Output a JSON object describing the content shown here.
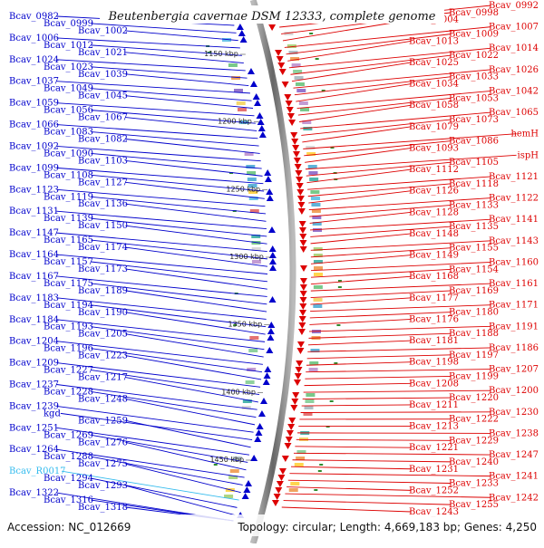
{
  "title": "Beutenbergia cavernae DSM 12333, complete genome",
  "footer": {
    "accession": "Accession: NC_012669",
    "topology": "Topology: circular; Length: 4,669,183 bp; Genes: 4,250"
  },
  "kbp_marks": [
    "1150 kbp",
    "1200 kbp",
    "1250 kbp",
    "1300 kbp",
    "1350 kbp",
    "1400 kbp",
    "1450 kbp"
  ],
  "colors": {
    "left_strand": "#0000cc",
    "right_strand": "#dd0000",
    "rna": "#33bbee"
  },
  "left_labels": [
    {
      "text": "Bcav_0982",
      "color": "#0000cc"
    },
    {
      "text": "Bcav_0999",
      "color": "#0000cc"
    },
    {
      "text": "Bcav_1002",
      "color": "#0000cc"
    },
    {
      "text": "Bcav_1006",
      "color": "#0000cc"
    },
    {
      "text": "Bcav_1012",
      "color": "#0000cc"
    },
    {
      "text": "Bcav_1021",
      "color": "#0000cc"
    },
    {
      "text": "Bcav_1024",
      "color": "#0000cc"
    },
    {
      "text": "Bcav_1023",
      "color": "#0000cc"
    },
    {
      "text": "Bcav_1039",
      "color": "#0000cc"
    },
    {
      "text": "Bcav_1037",
      "color": "#0000cc"
    },
    {
      "text": "Bcav_1049",
      "color": "#0000cc"
    },
    {
      "text": "Bcav_1045",
      "color": "#0000cc"
    },
    {
      "text": "Bcav_1059",
      "color": "#0000cc"
    },
    {
      "text": "Bcav_1056",
      "color": "#0000cc"
    },
    {
      "text": "Bcav_1067",
      "color": "#0000cc"
    },
    {
      "text": "Bcav_1066",
      "color": "#0000cc"
    },
    {
      "text": "Bcav_1083",
      "color": "#0000cc"
    },
    {
      "text": "Bcav_1082",
      "color": "#0000cc"
    },
    {
      "text": "Bcav_1092",
      "color": "#0000cc"
    },
    {
      "text": "Bcav_1090",
      "color": "#0000cc"
    },
    {
      "text": "Bcav_1103",
      "color": "#0000cc"
    },
    {
      "text": "Bcav_1099",
      "color": "#0000cc"
    },
    {
      "text": "Bcav_1108",
      "color": "#0000cc"
    },
    {
      "text": "Bcav_1127",
      "color": "#0000cc"
    },
    {
      "text": "Bcav_1123",
      "color": "#0000cc"
    },
    {
      "text": "Bcav_1119",
      "color": "#0000cc"
    },
    {
      "text": "Bcav_1136",
      "color": "#0000cc"
    },
    {
      "text": "Bcav_1131",
      "color": "#0000cc"
    },
    {
      "text": "Bcav_1139",
      "color": "#0000cc"
    },
    {
      "text": "Bcav_1150",
      "color": "#0000cc"
    },
    {
      "text": "Bcav_1147",
      "color": "#0000cc"
    },
    {
      "text": "Bcav_1165",
      "color": "#0000cc"
    },
    {
      "text": "Bcav_1174",
      "color": "#0000cc"
    },
    {
      "text": "Bcav_1164",
      "color": "#0000cc"
    },
    {
      "text": "Bcav_1157",
      "color": "#0000cc"
    },
    {
      "text": "Bcav_1173",
      "color": "#0000cc"
    },
    {
      "text": "Bcav_1167",
      "color": "#0000cc"
    },
    {
      "text": "Bcav_1175",
      "color": "#0000cc"
    },
    {
      "text": "Bcav_1189",
      "color": "#0000cc"
    },
    {
      "text": "Bcav_1183",
      "color": "#0000cc"
    },
    {
      "text": "Bcav_1194",
      "color": "#0000cc"
    },
    {
      "text": "Bcav_1190",
      "color": "#0000cc"
    },
    {
      "text": "Bcav_1184",
      "color": "#0000cc"
    },
    {
      "text": "Bcav_1193",
      "color": "#0000cc"
    },
    {
      "text": "Bcav_1205",
      "color": "#0000cc"
    },
    {
      "text": "Bcav_1204",
      "color": "#0000cc"
    },
    {
      "text": "Bcav_1196",
      "color": "#0000cc"
    },
    {
      "text": "Bcav_1223",
      "color": "#0000cc"
    },
    {
      "text": "Bcav_1209",
      "color": "#0000cc"
    },
    {
      "text": "Bcav_1227",
      "color": "#0000cc"
    },
    {
      "text": "Bcav_1217",
      "color": "#0000cc"
    },
    {
      "text": "Bcav_1237",
      "color": "#0000cc"
    },
    {
      "text": "Bcav_1228",
      "color": "#0000cc"
    },
    {
      "text": "Bcav_1248",
      "color": "#0000cc"
    },
    {
      "text": "Bcav_1239",
      "color": "#0000cc"
    },
    {
      "text": "kgd",
      "color": "#0000cc"
    },
    {
      "text": "Bcav_1259",
      "color": "#0000cc"
    },
    {
      "text": "Bcav_1251",
      "color": "#0000cc"
    },
    {
      "text": "Bcav_1269",
      "color": "#0000cc"
    },
    {
      "text": "Bcav_1276",
      "color": "#0000cc"
    },
    {
      "text": "Bcav_1264",
      "color": "#0000cc"
    },
    {
      "text": "Bcav_1288",
      "color": "#0000cc"
    },
    {
      "text": "Bcav_1275",
      "color": "#0000cc"
    },
    {
      "text": "Bcav_R0017",
      "color": "#33bbee"
    },
    {
      "text": "Bcav_1294",
      "color": "#0000cc"
    },
    {
      "text": "Bcav_1293",
      "color": "#0000cc"
    },
    {
      "text": "Bcav_1322",
      "color": "#0000cc"
    },
    {
      "text": "Bcav_1316",
      "color": "#0000cc"
    },
    {
      "text": "Bcav_1318",
      "color": "#0000cc"
    }
  ],
  "right_labels": [
    {
      "text": "Bcav_0992",
      "color": "#dd0000"
    },
    {
      "text": "Bcav_0998",
      "color": "#dd0000"
    },
    {
      "text": "Bcav_1004",
      "color": "#dd0000"
    },
    {
      "text": "Bcav_1007",
      "color": "#dd0000"
    },
    {
      "text": "Bcav_1009",
      "color": "#dd0000"
    },
    {
      "text": "Bcav_1013",
      "color": "#dd0000"
    },
    {
      "text": "Bcav_1014",
      "color": "#dd0000"
    },
    {
      "text": "Bcav_1022",
      "color": "#dd0000"
    },
    {
      "text": "Bcav_1025",
      "color": "#dd0000"
    },
    {
      "text": "Bcav_1026",
      "color": "#dd0000"
    },
    {
      "text": "Bcav_1033",
      "color": "#dd0000"
    },
    {
      "text": "Bcav_1034",
      "color": "#dd0000"
    },
    {
      "text": "Bcav_1042",
      "color": "#dd0000"
    },
    {
      "text": "Bcav_1053",
      "color": "#dd0000"
    },
    {
      "text": "Bcav_1058",
      "color": "#dd0000"
    },
    {
      "text": "Bcav_1065",
      "color": "#dd0000"
    },
    {
      "text": "Bcav_1073",
      "color": "#dd0000"
    },
    {
      "text": "Bcav_1079",
      "color": "#dd0000"
    },
    {
      "text": "hemH",
      "color": "#dd0000"
    },
    {
      "text": "Bcav_1086",
      "color": "#dd0000"
    },
    {
      "text": "Bcav_1093",
      "color": "#dd0000"
    },
    {
      "text": "ispH",
      "color": "#dd0000"
    },
    {
      "text": "Bcav_1105",
      "color": "#dd0000"
    },
    {
      "text": "Bcav_1112",
      "color": "#dd0000"
    },
    {
      "text": "Bcav_1121",
      "color": "#dd0000"
    },
    {
      "text": "Bcav_1118",
      "color": "#dd0000"
    },
    {
      "text": "Bcav_1126",
      "color": "#dd0000"
    },
    {
      "text": "Bcav_1122",
      "color": "#dd0000"
    },
    {
      "text": "Bcav_1133",
      "color": "#dd0000"
    },
    {
      "text": "Bcav_1128",
      "color": "#dd0000"
    },
    {
      "text": "Bcav_1141",
      "color": "#dd0000"
    },
    {
      "text": "Bcav_1135",
      "color": "#dd0000"
    },
    {
      "text": "Bcav_1148",
      "color": "#dd0000"
    },
    {
      "text": "Bcav_1143",
      "color": "#dd0000"
    },
    {
      "text": "Bcav_1155",
      "color": "#dd0000"
    },
    {
      "text": "Bcav_1149",
      "color": "#dd0000"
    },
    {
      "text": "Bcav_1160",
      "color": "#dd0000"
    },
    {
      "text": "Bcav_1154",
      "color": "#dd0000"
    },
    {
      "text": "Bcav_1168",
      "color": "#dd0000"
    },
    {
      "text": "Bcav_1161",
      "color": "#dd0000"
    },
    {
      "text": "Bcav_1169",
      "color": "#dd0000"
    },
    {
      "text": "Bcav_1177",
      "color": "#dd0000"
    },
    {
      "text": "Bcav_1171",
      "color": "#dd0000"
    },
    {
      "text": "Bcav_1180",
      "color": "#dd0000"
    },
    {
      "text": "Bcav_1176",
      "color": "#dd0000"
    },
    {
      "text": "Bcav_1191",
      "color": "#dd0000"
    },
    {
      "text": "Bcav_1188",
      "color": "#dd0000"
    },
    {
      "text": "Bcav_1181",
      "color": "#dd0000"
    },
    {
      "text": "Bcav_1186",
      "color": "#dd0000"
    },
    {
      "text": "Bcav_1197",
      "color": "#dd0000"
    },
    {
      "text": "Bcav_1198",
      "color": "#dd0000"
    },
    {
      "text": "Bcav_1207",
      "color": "#dd0000"
    },
    {
      "text": "Bcav_1199",
      "color": "#dd0000"
    },
    {
      "text": "Bcav_1208",
      "color": "#dd0000"
    },
    {
      "text": "Bcav_1200",
      "color": "#dd0000"
    },
    {
      "text": "Bcav_1220",
      "color": "#dd0000"
    },
    {
      "text": "Bcav_1211",
      "color": "#dd0000"
    },
    {
      "text": "Bcav_1230",
      "color": "#dd0000"
    },
    {
      "text": "Bcav_1222",
      "color": "#dd0000"
    },
    {
      "text": "Bcav_1213",
      "color": "#dd0000"
    },
    {
      "text": "Bcav_1238",
      "color": "#dd0000"
    },
    {
      "text": "Bcav_1229",
      "color": "#dd0000"
    },
    {
      "text": "Bcav_1221",
      "color": "#dd0000"
    },
    {
      "text": "Bcav_1247",
      "color": "#dd0000"
    },
    {
      "text": "Bcav_1240",
      "color": "#dd0000"
    },
    {
      "text": "Bcav_1231",
      "color": "#dd0000"
    },
    {
      "text": "Bcav_1241",
      "color": "#dd0000"
    },
    {
      "text": "Bcav_1233",
      "color": "#dd0000"
    },
    {
      "text": "Bcav_1252",
      "color": "#dd0000"
    },
    {
      "text": "Bcav_1242",
      "color": "#dd0000"
    },
    {
      "text": "Bcav_1255",
      "color": "#dd0000"
    },
    {
      "text": "Bcav_1243",
      "color": "#dd0000"
    }
  ]
}
